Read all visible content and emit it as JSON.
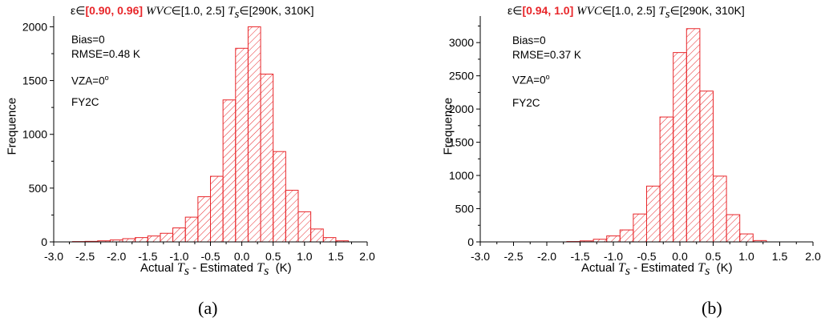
{
  "chart_data": [
    {
      "type": "bar",
      "panel_label": "(a)",
      "header": {
        "eps_prefix": "ε∈",
        "eps_range": "[0.90, 0.96]",
        "wvc_name": "WVC",
        "wvc_range": "∈[1.0, 2.5]",
        "ts_name": "T",
        "ts_sub": "s",
        "ts_range": "∈[290K, 310K]"
      },
      "stats": {
        "bias": "Bias=0",
        "rmse": "RMSE=0.48 K",
        "vza_prefix": "VZA=0",
        "vza_sup": "o",
        "satellite": "FY2C"
      },
      "ylabel": "Frequence",
      "xlabel": {
        "part1": "Actual ",
        "t1": "T",
        "s1": "s",
        "part2": " - Estimated ",
        "t2": "T",
        "s2": "s",
        "unit": "  (K)"
      },
      "xlim": [
        -3.0,
        2.0
      ],
      "ylim": [
        0,
        2100
      ],
      "xticks": [
        "-3.0",
        "-2.5",
        "-2.0",
        "-1.5",
        "-1.0",
        "-0.5",
        "0.0",
        "0.5",
        "1.0",
        "1.5",
        "2.0"
      ],
      "yticks": [
        "0",
        "500",
        "1000",
        "1500",
        "2000"
      ],
      "bin_width": 0.2,
      "bin_centers": [
        -2.6,
        -2.4,
        -2.2,
        -2.0,
        -1.8,
        -1.6,
        -1.4,
        -1.2,
        -1.0,
        -0.8,
        -0.6,
        -0.4,
        -0.2,
        0.0,
        0.2,
        0.4,
        0.6,
        0.8,
        1.0,
        1.2,
        1.4,
        1.6
      ],
      "values": [
        3,
        5,
        10,
        18,
        30,
        40,
        55,
        80,
        130,
        230,
        420,
        610,
        1320,
        1800,
        2000,
        1560,
        840,
        480,
        280,
        120,
        40,
        10
      ],
      "bar_color": "#e8262a"
    },
    {
      "type": "bar",
      "panel_label": "(b)",
      "header": {
        "eps_prefix": "ε∈",
        "eps_range": "[0.94, 1.0]",
        "wvc_name": "WVC",
        "wvc_range": "∈[1.0, 2.5]",
        "ts_name": "T",
        "ts_sub": "s",
        "ts_range": "∈[290K, 310K]"
      },
      "stats": {
        "bias": "Bias=0",
        "rmse": "RMSE=0.37 K",
        "vza_prefix": "VZA=0",
        "vza_sup": "o",
        "satellite": "FY2C"
      },
      "ylabel": "Frequence",
      "xlabel": {
        "part1": "Actual ",
        "t1": "T",
        "s1": "s",
        "part2": " - Estimated ",
        "t2": "T",
        "s2": "s",
        "unit": "  (K)"
      },
      "xlim": [
        -3.0,
        2.0
      ],
      "ylim": [
        0,
        3400
      ],
      "xticks": [
        "-3.0",
        "-2.5",
        "-2.0",
        "-1.5",
        "-1.0",
        "-0.5",
        "0.0",
        "0.5",
        "1.0",
        "1.5",
        "2.0"
      ],
      "yticks": [
        "0",
        "500",
        "1000",
        "1500",
        "2000",
        "2500",
        "3000"
      ],
      "bin_width": 0.2,
      "bin_centers": [
        -1.6,
        -1.4,
        -1.2,
        -1.0,
        -0.8,
        -0.6,
        -0.4,
        -0.2,
        0.0,
        0.2,
        0.4,
        0.6,
        0.8,
        1.0,
        1.2
      ],
      "values": [
        5,
        15,
        40,
        90,
        180,
        420,
        840,
        1880,
        2850,
        3210,
        2270,
        990,
        410,
        120,
        20
      ],
      "bar_color": "#e8262a"
    }
  ]
}
